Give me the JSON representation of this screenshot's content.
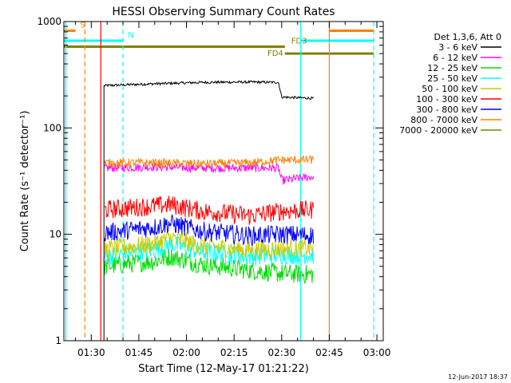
{
  "chart_data": {
    "type": "line",
    "title": "HESSI Observing Summary Count Rates",
    "xlabel": "Start Time (12-May-17 01:21:22)",
    "ylabel": "Count Rate (s⁻¹ detector⁻¹)",
    "y_scale": "log",
    "ylim": [
      1,
      1000
    ],
    "xlim": [
      "01:21:22",
      "03:02"
    ],
    "x_ticks": [
      "01:30",
      "01:45",
      "02:00",
      "02:15",
      "02:30",
      "02:45",
      "03:00"
    ],
    "y_ticks": [
      "1",
      "10",
      "100",
      "1000"
    ],
    "footer": "12-Jun-2017 18:37",
    "legend": {
      "title": "Det 1,3,6, Att 0",
      "placement": "right",
      "items": [
        {
          "label": "3 - 6 keV",
          "color": "#000000"
        },
        {
          "label": "6 - 12 keV",
          "color": "#ff00ff"
        },
        {
          "label": "12 - 25 keV",
          "color": "#00dd00"
        },
        {
          "label": "25 - 50 keV",
          "color": "#00ffff"
        },
        {
          "label": "50 - 100 keV",
          "color": "#cccc00"
        },
        {
          "label": "100 - 300 keV",
          "color": "#ff0000"
        },
        {
          "label": "300 - 800 keV",
          "color": "#0000ff"
        },
        {
          "label": "800 - 7000 keV",
          "color": "#ff8000"
        },
        {
          "label": "7000 - 20000 keV",
          "color": "#808000"
        }
      ]
    },
    "series": [
      {
        "name": "3 - 6 keV",
        "color": "#000000",
        "x": [
          "01:34",
          "01:50",
          "02:05",
          "02:20",
          "02:29",
          "02:30",
          "02:40"
        ],
        "y": [
          250,
          260,
          268,
          270,
          268,
          195,
          190
        ]
      },
      {
        "name": "6 - 12 keV",
        "color": "#ff00ff",
        "x": [
          "01:34",
          "01:50",
          "02:05",
          "02:20",
          "02:29",
          "02:30",
          "02:40"
        ],
        "y": [
          42,
          43,
          42,
          42,
          42,
          32,
          35
        ]
      },
      {
        "name": "12 - 25 keV",
        "color": "#00dd00",
        "x": [
          "01:34",
          "01:50",
          "01:55",
          "02:05",
          "02:20",
          "02:30",
          "02:40"
        ],
        "y": [
          5,
          5.6,
          6.2,
          5.2,
          4.6,
          4.3,
          4.2
        ]
      },
      {
        "name": "25 - 50 keV",
        "color": "#00ffff",
        "x": [
          "01:34",
          "01:50",
          "01:55",
          "02:05",
          "02:20",
          "02:30",
          "02:40"
        ],
        "y": [
          6.2,
          7.2,
          8.2,
          6.8,
          6.2,
          6.4,
          6.4
        ]
      },
      {
        "name": "50 - 100 keV",
        "color": "#cccc00",
        "x": [
          "01:34",
          "01:50",
          "01:55",
          "02:05",
          "02:20",
          "02:30",
          "02:40"
        ],
        "y": [
          7.2,
          8.2,
          9.3,
          7.8,
          7.1,
          7.4,
          7.4
        ]
      },
      {
        "name": "100 - 300 keV",
        "color": "#ff0000",
        "x": [
          "01:34",
          "01:50",
          "01:55",
          "02:05",
          "02:20",
          "02:30",
          "02:40"
        ],
        "y": [
          17,
          18.5,
          19,
          16.5,
          15,
          16.5,
          17
        ]
      },
      {
        "name": "300 - 800 keV",
        "color": "#0000ff",
        "x": [
          "01:34",
          "01:50",
          "01:55",
          "02:05",
          "02:20",
          "02:30",
          "02:40"
        ],
        "y": [
          10.3,
          11.7,
          12.7,
          10.7,
          9.7,
          10,
          9.8
        ]
      },
      {
        "name": "800 - 7000 keV",
        "color": "#ff8000",
        "x": [
          "01:34",
          "01:50",
          "02:05",
          "02:20",
          "02:30",
          "02:40"
        ],
        "y": [
          47,
          47,
          46,
          47,
          50,
          50
        ]
      }
    ],
    "flag_bars": [
      {
        "label": "S",
        "color": "#ff8000",
        "y": 820,
        "segments": [
          [
            "01:21:22",
            "01:25"
          ],
          [
            "02:45",
            "02:59"
          ]
        ]
      },
      {
        "label": "N",
        "color": "#00ffff",
        "y": 660,
        "segments": [
          [
            "01:21:22",
            "01:40"
          ],
          [
            "02:36",
            "02:59"
          ]
        ]
      },
      {
        "label": "FD3",
        "color": "#808000",
        "y": 580,
        "segments": [
          [
            "01:21:22",
            "02:31"
          ]
        ]
      },
      {
        "label": "FD4",
        "color": "#808000",
        "y": 500,
        "segments": [
          [
            "02:31",
            "02:59"
          ]
        ]
      }
    ],
    "vertical_lines": [
      {
        "x": "01:22",
        "color": "#00ffff",
        "style": "solid"
      },
      {
        "x": "01:28",
        "color": "#ff8000",
        "style": "dashed"
      },
      {
        "x": "01:33",
        "color": "#ff0000",
        "style": "solid"
      },
      {
        "x": "01:40",
        "color": "#00ffff",
        "style": "dashed"
      },
      {
        "x": "02:36",
        "color": "#00ffff",
        "style": "solid"
      },
      {
        "x": "02:45",
        "color": "#ff8000",
        "style": "solid"
      },
      {
        "x": "02:59",
        "color": "#00ffff",
        "style": "dashed"
      }
    ]
  }
}
